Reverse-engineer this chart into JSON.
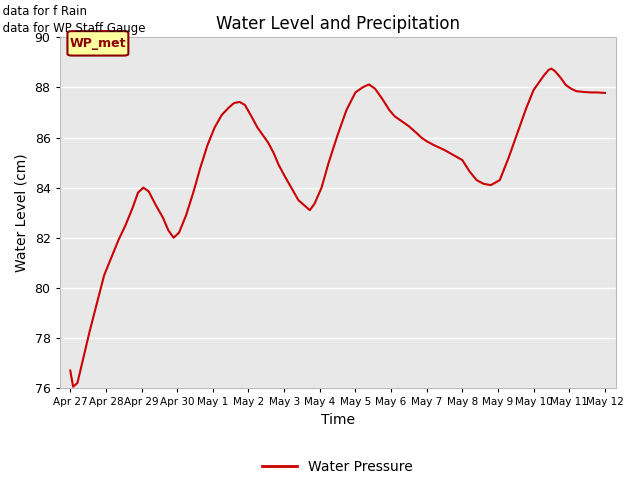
{
  "title": "Water Level and Precipitation",
  "xlabel": "Time",
  "ylabel": "Water Level (cm)",
  "annotation_lines": [
    "No data for f Rain",
    "No data for WP Staff Gauge"
  ],
  "legend_label": "Water Pressure",
  "legend_box_label": "WP_met",
  "line_color": "#cc0000",
  "background_color": "#e8e8e8",
  "ylim": [
    76,
    90
  ],
  "yticks": [
    76,
    78,
    80,
    82,
    84,
    86,
    88,
    90
  ],
  "x_labels": [
    "Apr 27",
    "Apr 28",
    "Apr 29",
    "Apr 30",
    "May 1",
    "May 2",
    "May 3",
    "May 4",
    "May 5",
    "May 6",
    "May 7",
    "May 8",
    "May 9",
    "May 10",
    "May 11",
    "May 12"
  ],
  "x_values": [
    0,
    1,
    2,
    3,
    4,
    5,
    6,
    7,
    8,
    9,
    10,
    11,
    12,
    13,
    14,
    15
  ],
  "data_points": [
    [
      0.0,
      76.7
    ],
    [
      0.08,
      76.05
    ],
    [
      0.2,
      76.2
    ],
    [
      0.35,
      77.1
    ],
    [
      0.55,
      78.3
    ],
    [
      0.75,
      79.4
    ],
    [
      0.95,
      80.5
    ],
    [
      1.15,
      81.2
    ],
    [
      1.35,
      81.9
    ],
    [
      1.55,
      82.5
    ],
    [
      1.75,
      83.2
    ],
    [
      1.9,
      83.8
    ],
    [
      2.05,
      84.0
    ],
    [
      2.2,
      83.85
    ],
    [
      2.4,
      83.3
    ],
    [
      2.6,
      82.8
    ],
    [
      2.75,
      82.3
    ],
    [
      2.9,
      82.0
    ],
    [
      3.05,
      82.2
    ],
    [
      3.25,
      82.9
    ],
    [
      3.45,
      83.8
    ],
    [
      3.65,
      84.8
    ],
    [
      3.85,
      85.7
    ],
    [
      4.05,
      86.4
    ],
    [
      4.25,
      86.9
    ],
    [
      4.45,
      87.2
    ],
    [
      4.6,
      87.38
    ],
    [
      4.75,
      87.42
    ],
    [
      4.9,
      87.3
    ],
    [
      5.1,
      86.8
    ],
    [
      5.25,
      86.4
    ],
    [
      5.4,
      86.1
    ],
    [
      5.55,
      85.8
    ],
    [
      5.7,
      85.4
    ],
    [
      5.85,
      84.9
    ],
    [
      6.0,
      84.5
    ],
    [
      6.2,
      84.0
    ],
    [
      6.4,
      83.5
    ],
    [
      6.6,
      83.25
    ],
    [
      6.72,
      83.1
    ],
    [
      6.85,
      83.35
    ],
    [
      7.05,
      84.0
    ],
    [
      7.25,
      85.0
    ],
    [
      7.5,
      86.1
    ],
    [
      7.75,
      87.1
    ],
    [
      8.0,
      87.8
    ],
    [
      8.2,
      88.0
    ],
    [
      8.38,
      88.12
    ],
    [
      8.55,
      87.95
    ],
    [
      8.75,
      87.55
    ],
    [
      8.95,
      87.1
    ],
    [
      9.1,
      86.85
    ],
    [
      9.3,
      86.65
    ],
    [
      9.5,
      86.45
    ],
    [
      9.7,
      86.2
    ],
    [
      9.85,
      86.0
    ],
    [
      10.0,
      85.85
    ],
    [
      10.2,
      85.7
    ],
    [
      10.5,
      85.5
    ],
    [
      10.75,
      85.3
    ],
    [
      11.0,
      85.1
    ],
    [
      11.2,
      84.65
    ],
    [
      11.4,
      84.3
    ],
    [
      11.6,
      84.15
    ],
    [
      11.8,
      84.1
    ],
    [
      12.05,
      84.3
    ],
    [
      12.3,
      85.2
    ],
    [
      12.55,
      86.2
    ],
    [
      12.8,
      87.2
    ],
    [
      13.0,
      87.9
    ],
    [
      13.15,
      88.2
    ],
    [
      13.3,
      88.5
    ],
    [
      13.42,
      88.7
    ],
    [
      13.5,
      88.75
    ],
    [
      13.6,
      88.65
    ],
    [
      13.75,
      88.4
    ],
    [
      13.9,
      88.1
    ],
    [
      14.05,
      87.95
    ],
    [
      14.2,
      87.85
    ],
    [
      14.4,
      87.82
    ],
    [
      14.6,
      87.8
    ],
    [
      14.8,
      87.8
    ],
    [
      15.0,
      87.78
    ]
  ]
}
